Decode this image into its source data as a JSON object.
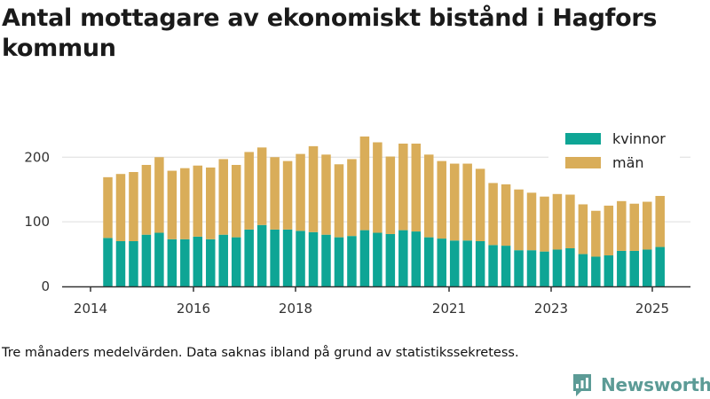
{
  "title": "Antal mottagare av ekonomiskt bistånd i Hagfors kommun",
  "note": "Tre månaders medelvärden. Data saknas ibland på grund av statistikssekretess.",
  "brand": {
    "name": "Newsworthy",
    "logo_icon": "newsworthy-chart-bubble-icon"
  },
  "colors": {
    "kvinnor": "#0ea595",
    "man": "#d9ad59",
    "gridline": "#dddddd",
    "axis": "#333333"
  },
  "chart_data": {
    "type": "bar",
    "stacked": true,
    "title": "Antal mottagare av ekonomiskt bistånd i Hagfors kommun",
    "xlabel": "",
    "ylabel": "",
    "ylim": [
      0,
      250
    ],
    "y_ticks": [
      0,
      100,
      200
    ],
    "x_tick_labels": [
      "2014",
      "2016",
      "2018",
      "2021",
      "2023",
      "2025"
    ],
    "grid": true,
    "legend_position": "top-right",
    "series": [
      {
        "name": "kvinnor",
        "color": "#0ea595",
        "values": [
          75,
          70,
          70,
          80,
          83,
          73,
          73,
          77,
          73,
          80,
          76,
          88,
          95,
          88,
          88,
          86,
          84,
          80,
          76,
          78,
          87,
          83,
          81,
          87,
          85,
          76,
          74,
          71,
          71,
          70,
          64,
          63,
          56,
          56,
          54,
          57,
          59,
          50,
          46,
          48,
          55,
          55,
          57,
          61
        ]
      },
      {
        "name": "män",
        "color": "#d9ad59",
        "values": [
          94,
          104,
          107,
          108,
          117,
          106,
          110,
          110,
          111,
          117,
          112,
          120,
          120,
          112,
          106,
          119,
          133,
          124,
          113,
          119,
          145,
          140,
          120,
          134,
          136,
          128,
          120,
          119,
          119,
          112,
          96,
          95,
          94,
          89,
          85,
          86,
          83,
          77,
          71,
          77,
          77,
          73,
          74,
          79
        ]
      }
    ]
  }
}
